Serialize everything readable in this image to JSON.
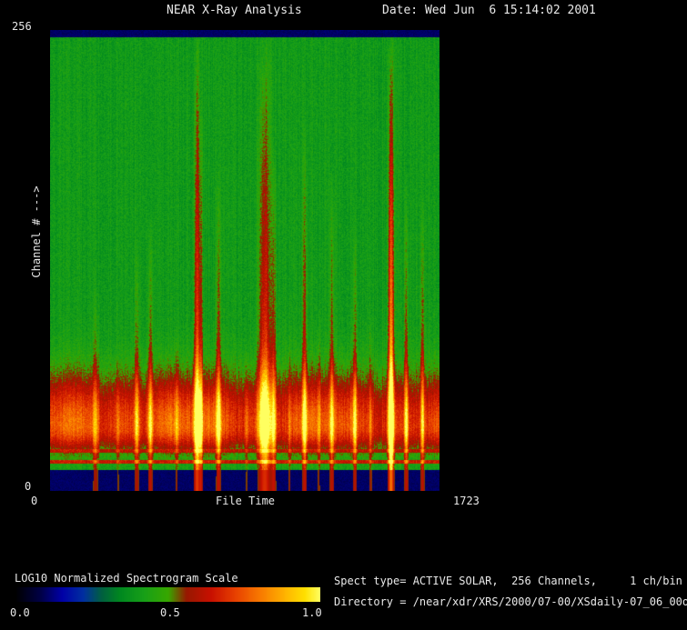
{
  "header": {
    "title": "NEAR X-Ray Analysis",
    "date_label": "Date: Wed Jun  6 15:14:02 2001"
  },
  "plot": {
    "y_axis_top_tick": "256",
    "y_axis_bottom_tick": "0",
    "y_axis_title": "Channel # --->",
    "x_axis_left_tick": "0",
    "x_axis_title": "File Time",
    "x_axis_right_tick": "1723"
  },
  "colorbar": {
    "title": "LOG10 Normalized Spectrogram Scale",
    "tick_0": "0.0",
    "tick_1": "0.5",
    "tick_2": "1.0"
  },
  "info": {
    "line1": "Spect type= ACTIVE SOLAR,  256 Channels,     1 ch/bin",
    "line2": "Directory = /near/xdr/XRS/2000/07-00/XSdaily-07_06_00out/"
  },
  "chart_data": {
    "type": "heatmap",
    "title": "NEAR X-Ray Analysis",
    "xlabel": "File Time",
    "ylabel": "Channel #",
    "xlim": [
      0,
      1723
    ],
    "ylim": [
      0,
      256
    ],
    "scale_label": "LOG10 Normalized Spectrogram Scale",
    "scale_range": [
      0.0,
      1.0
    ],
    "background_level": 0.4,
    "colormap": [
      [
        0.0,
        "#000004"
      ],
      [
        0.08,
        "#000048"
      ],
      [
        0.15,
        "#0000a8"
      ],
      [
        0.22,
        "#0030a0"
      ],
      [
        0.28,
        "#006040"
      ],
      [
        0.34,
        "#008820"
      ],
      [
        0.42,
        "#18a018"
      ],
      [
        0.5,
        "#38a800"
      ],
      [
        0.56,
        "#981800"
      ],
      [
        0.64,
        "#c81000"
      ],
      [
        0.72,
        "#e84000"
      ],
      [
        0.8,
        "#f87800"
      ],
      [
        0.88,
        "#ffb000"
      ],
      [
        0.95,
        "#ffe000"
      ],
      [
        1.0,
        "#ffff60"
      ]
    ],
    "band": {
      "center_channel": 36,
      "sigma_low": 10,
      "sigma_high": 20,
      "amplitude": 0.42
    },
    "top_strip": {
      "channels": [
        252,
        256
      ],
      "level": 0.1
    },
    "bottom_strip": {
      "channels": [
        0,
        11.5
      ],
      "level": 0.1
    },
    "hot_channels": [
      {
        "channel": 16,
        "boost": 0.2
      },
      {
        "channel": 22,
        "boost": 0.1
      }
    ],
    "flares": [
      {
        "t": 200,
        "w": 9,
        "s": 0.16,
        "h": 0.45
      },
      {
        "t": 300,
        "w": 5,
        "s": 0.1,
        "h": 0.3
      },
      {
        "t": 383,
        "w": 7,
        "s": 0.2,
        "h": 0.55
      },
      {
        "t": 443,
        "w": 7,
        "s": 0.24,
        "h": 0.6
      },
      {
        "t": 560,
        "w": 5,
        "s": 0.12,
        "h": 0.35
      },
      {
        "t": 650,
        "w": 9,
        "s": 0.42,
        "h": 1.0
      },
      {
        "t": 668,
        "w": 5,
        "s": 0.26,
        "h": 0.85
      },
      {
        "t": 745,
        "w": 7,
        "s": 0.26,
        "h": 0.7
      },
      {
        "t": 870,
        "w": 5,
        "s": 0.1,
        "h": 0.3
      },
      {
        "t": 950,
        "w": 18,
        "s": 0.38,
        "h": 1.0
      },
      {
        "t": 990,
        "w": 7,
        "s": 0.24,
        "h": 0.75
      },
      {
        "t": 1060,
        "w": 5,
        "s": 0.12,
        "h": 0.35
      },
      {
        "t": 1127,
        "w": 7,
        "s": 0.26,
        "h": 0.8
      },
      {
        "t": 1190,
        "w": 5,
        "s": 0.12,
        "h": 0.4
      },
      {
        "t": 1248,
        "w": 7,
        "s": 0.24,
        "h": 0.7
      },
      {
        "t": 1350,
        "w": 6,
        "s": 0.22,
        "h": 0.6
      },
      {
        "t": 1420,
        "w": 5,
        "s": 0.14,
        "h": 0.4
      },
      {
        "t": 1510,
        "w": 8,
        "s": 0.6,
        "h": 1.0
      },
      {
        "t": 1578,
        "w": 6,
        "s": 0.26,
        "h": 0.7
      },
      {
        "t": 1650,
        "w": 6,
        "s": 0.24,
        "h": 0.65
      }
    ]
  }
}
